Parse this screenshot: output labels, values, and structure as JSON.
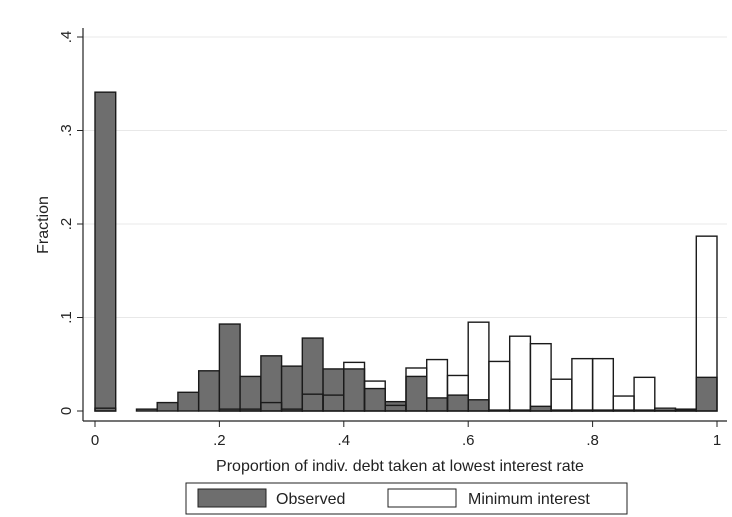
{
  "chart_data": {
    "type": "bar",
    "xlabel": "Proportion of indiv. debt taken at lowest interest rate",
    "ylabel": "Fraction",
    "xlim": [
      -0.03,
      1.02
    ],
    "ylim": [
      0,
      0.4
    ],
    "x_ticks": [
      0,
      0.2,
      0.4,
      0.6,
      0.8,
      1
    ],
    "x_tick_labels": [
      "0",
      ".2",
      ".4",
      ".6",
      ".8",
      "1"
    ],
    "y_ticks": [
      0,
      0.1,
      0.2,
      0.3,
      0.4
    ],
    "y_tick_labels": [
      "0",
      ".1",
      ".2",
      ".3",
      ".4"
    ],
    "bin_width": 0.0333,
    "grid": true,
    "legend_position": "bottom",
    "series": [
      {
        "name": "Observed",
        "style": "filled",
        "color": "#6e6e6e",
        "bins": [
          {
            "x": 0.0,
            "value": 0.341
          },
          {
            "x": 0.0667,
            "value": 0.002
          },
          {
            "x": 0.1,
            "value": 0.009
          },
          {
            "x": 0.1333,
            "value": 0.02
          },
          {
            "x": 0.1667,
            "value": 0.043
          },
          {
            "x": 0.2,
            "value": 0.093
          },
          {
            "x": 0.2333,
            "value": 0.037
          },
          {
            "x": 0.2667,
            "value": 0.059
          },
          {
            "x": 0.3,
            "value": 0.048
          },
          {
            "x": 0.3333,
            "value": 0.078
          },
          {
            "x": 0.3667,
            "value": 0.045
          },
          {
            "x": 0.4,
            "value": 0.045
          },
          {
            "x": 0.4333,
            "value": 0.024
          },
          {
            "x": 0.4667,
            "value": 0.01
          },
          {
            "x": 0.5,
            "value": 0.037
          },
          {
            "x": 0.5333,
            "value": 0.014
          },
          {
            "x": 0.5667,
            "value": 0.017
          },
          {
            "x": 0.6,
            "value": 0.012
          },
          {
            "x": 0.6333,
            "value": 0.001
          },
          {
            "x": 0.6667,
            "value": 0.001
          },
          {
            "x": 0.7,
            "value": 0.005
          },
          {
            "x": 0.7333,
            "value": 0.001
          },
          {
            "x": 0.7667,
            "value": 0.001
          },
          {
            "x": 0.8,
            "value": 0.001
          },
          {
            "x": 0.8333,
            "value": 0.001
          },
          {
            "x": 0.8667,
            "value": 0.001
          },
          {
            "x": 0.9,
            "value": 0.001
          },
          {
            "x": 0.9333,
            "value": 0.001
          },
          {
            "x": 0.9667,
            "value": 0.036
          }
        ]
      },
      {
        "name": "Minimum interest",
        "style": "hollow",
        "color": "#ffffff",
        "bins": [
          {
            "x": 0.0,
            "value": 0.003
          },
          {
            "x": 0.2,
            "value": 0.002
          },
          {
            "x": 0.2333,
            "value": 0.002
          },
          {
            "x": 0.2667,
            "value": 0.009
          },
          {
            "x": 0.3,
            "value": 0.002
          },
          {
            "x": 0.3333,
            "value": 0.018
          },
          {
            "x": 0.3667,
            "value": 0.017
          },
          {
            "x": 0.4,
            "value": 0.052
          },
          {
            "x": 0.4333,
            "value": 0.032
          },
          {
            "x": 0.4667,
            "value": 0.006
          },
          {
            "x": 0.5,
            "value": 0.046
          },
          {
            "x": 0.5333,
            "value": 0.055
          },
          {
            "x": 0.5667,
            "value": 0.038
          },
          {
            "x": 0.6,
            "value": 0.095
          },
          {
            "x": 0.6333,
            "value": 0.053
          },
          {
            "x": 0.6667,
            "value": 0.08
          },
          {
            "x": 0.7,
            "value": 0.072
          },
          {
            "x": 0.7333,
            "value": 0.034
          },
          {
            "x": 0.7667,
            "value": 0.056
          },
          {
            "x": 0.8,
            "value": 0.056
          },
          {
            "x": 0.8333,
            "value": 0.016
          },
          {
            "x": 0.8667,
            "value": 0.036
          },
          {
            "x": 0.9,
            "value": 0.003
          },
          {
            "x": 0.9333,
            "value": 0.002
          },
          {
            "x": 0.9667,
            "value": 0.187
          }
        ]
      }
    ]
  }
}
